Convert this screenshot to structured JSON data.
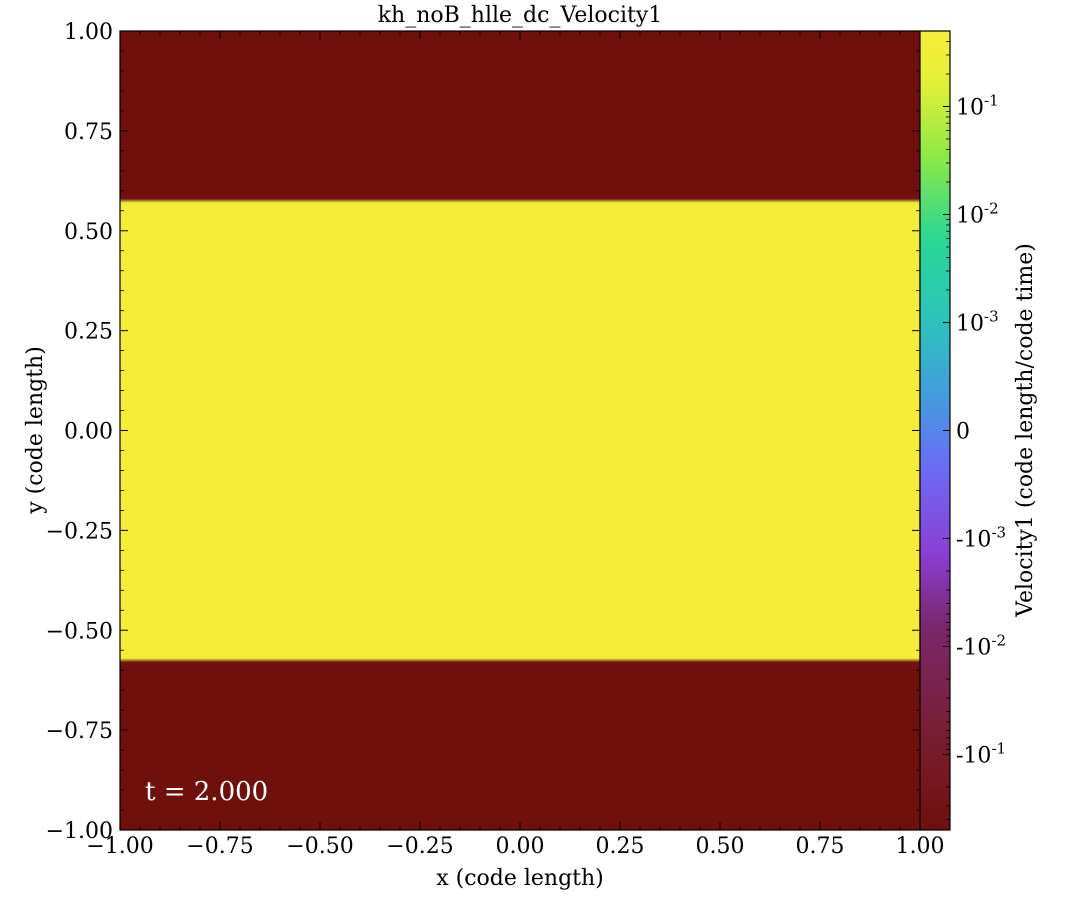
{
  "chart_data": {
    "type": "heatmap",
    "title": "kh_noB_hlle_dc_Velocity1",
    "xlabel": "x  (code length)",
    "ylabel": "y  (code length)",
    "xlim": [
      -1.0,
      1.0
    ],
    "ylim": [
      -1.0,
      1.0
    ],
    "x_ticks": [
      -1.0,
      -0.75,
      -0.5,
      -0.25,
      0.0,
      0.25,
      0.5,
      0.75,
      1.0
    ],
    "y_ticks": [
      -1.0,
      -0.75,
      -0.5,
      -0.25,
      0.0,
      0.25,
      0.5,
      0.75,
      1.0
    ],
    "x_tick_labels": [
      "−1.00",
      "−0.75",
      "−0.50",
      "−0.25",
      "0.00",
      "0.25",
      "0.50",
      "0.75",
      "1.00"
    ],
    "y_tick_labels": [
      "−1.00",
      "−0.75",
      "−0.50",
      "−0.25",
      "0.00",
      "0.25",
      "0.50",
      "0.75",
      "1.00"
    ],
    "annotation": "t = 2.000",
    "field_profile": {
      "description": "Velocity1 as a function of y (uniform in x)",
      "inner_band_y": [
        -0.575,
        0.575
      ],
      "inner_value": 0.5,
      "outer_value": -0.5,
      "interface_width": 0.05
    },
    "colorbar": {
      "label": "Velocity1  (code length/code time)",
      "scale": "symlog",
      "linthresh": 0.001,
      "range": [
        -0.5,
        0.5
      ],
      "colormap": "turbo_like",
      "ticks": [
        {
          "base": "10",
          "exp": "-1",
          "value": 0.1
        },
        {
          "base": "10",
          "exp": "-2",
          "value": 0.01
        },
        {
          "base": "10",
          "exp": "-3",
          "value": 0.001
        },
        {
          "base": "0",
          "exp": "",
          "value": 0.0
        },
        {
          "base": "-10",
          "exp": "-3",
          "value": -0.001
        },
        {
          "base": "-10",
          "exp": "-2",
          "value": -0.01
        },
        {
          "base": "-10",
          "exp": "-1",
          "value": -0.1
        }
      ]
    }
  },
  "colors": {
    "outer": "#6e0f0c",
    "inner": "#f5ed3a"
  }
}
